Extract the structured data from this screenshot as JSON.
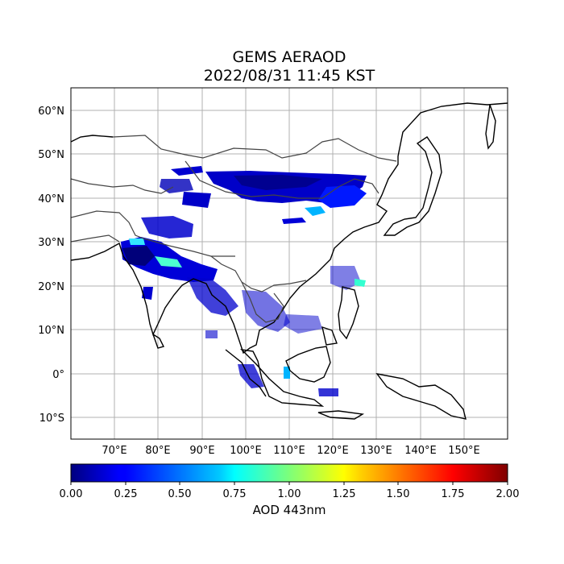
{
  "title": {
    "line1": "GEMS AERAOD",
    "line2": "2022/08/31 11:45 KST"
  },
  "map": {
    "projection": "PlateCarree",
    "lon_range": [
      60,
      160
    ],
    "lat_range": [
      -15,
      65
    ],
    "lon_tick_labels": [
      "70°E",
      "80°E",
      "90°E",
      "100°E",
      "110°E",
      "120°E",
      "130°E",
      "140°E",
      "150°E"
    ],
    "lat_tick_labels": [
      "60°N",
      "50°N",
      "40°N",
      "30°N",
      "20°N",
      "10°N",
      "0°",
      "10°S"
    ],
    "gridlines": true,
    "coastline_color": "#000000",
    "border_color": "#444444"
  },
  "colorbar": {
    "label": "AOD 443nm",
    "min": 0.0,
    "max": 2.0,
    "tick_labels": [
      "0.00",
      "0.25",
      "0.50",
      "0.75",
      "1.00",
      "1.25",
      "1.50",
      "1.75",
      "2.00"
    ],
    "colormap": "jet"
  }
}
